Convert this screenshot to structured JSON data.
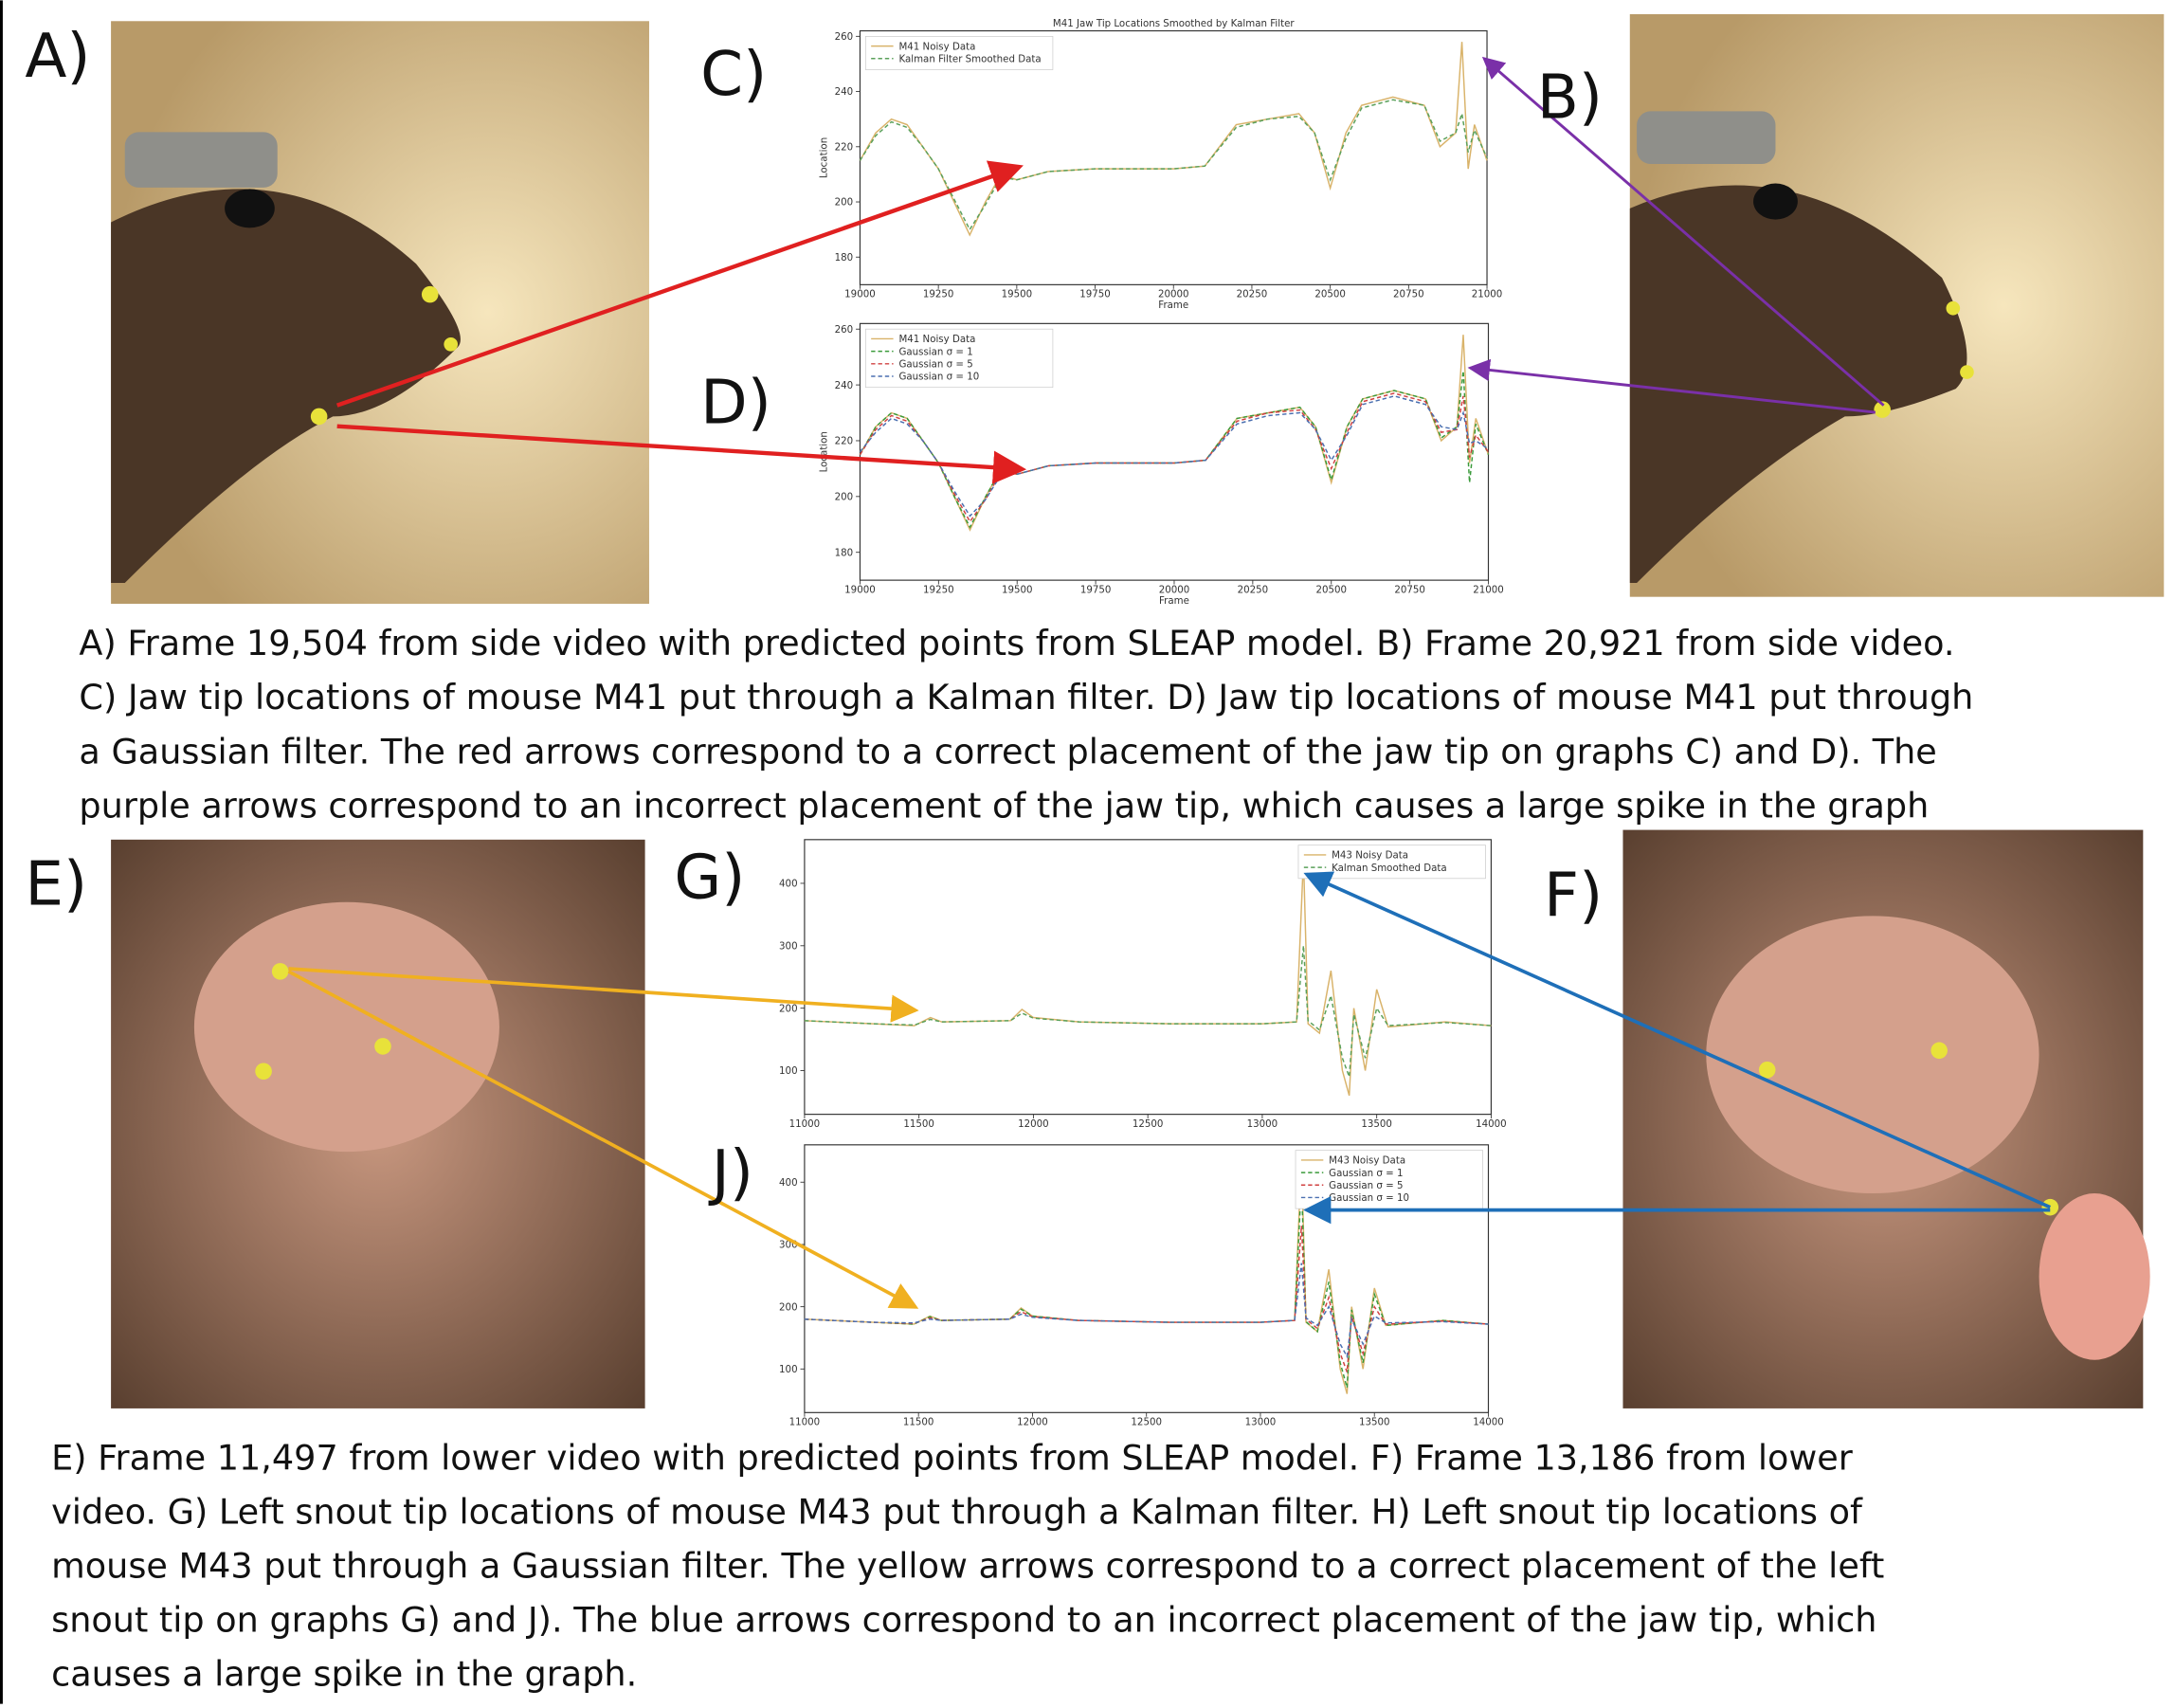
{
  "panel_labels": [
    "A)",
    "B)",
    "C)",
    "D)",
    "E)",
    "F)",
    "G)",
    "J)"
  ],
  "captions": [
    [
      "A) Frame 19,504 from side video with predicted points from SLEAP model. B) Frame 20,921 from side video.",
      "C) Jaw tip locations of mouse M41 put through a Kalman filter. D) Jaw tip locations of mouse M41 put through",
      "a Gaussian filter. The red arrows correspond to a correct placement of the jaw tip on graphs C) and D). The",
      "purple arrows correspond to an incorrect placement of the jaw tip, which causes a large spike in the graph"
    ],
    [
      "E) Frame 11,497 from lower video with predicted points from SLEAP model. F) Frame 13,186 from lower",
      "video. G) Left snout tip locations of mouse M43 put through a Kalman filter. H) Left snout tip locations of",
      "mouse M43 put through a Gaussian filter. The yellow arrows correspond to a correct placement of the left",
      "snout tip on graphs G) and J). The blue arrows correspond to an incorrect placement of the jaw tip, which",
      "causes a large spike in the graph."
    ]
  ],
  "chart_data": [
    {
      "type": "line",
      "title": "M41 Jaw Tip Locations Smoothed by Kalman Filter",
      "xlabel": "Frame",
      "ylabel": "Location",
      "legend": "upper left",
      "x": [
        19000,
        19050,
        19100,
        19150,
        19200,
        19250,
        19300,
        19350,
        19400,
        19450,
        19500,
        19600,
        19750,
        19900,
        20000,
        20100,
        20200,
        20300,
        20400,
        20450,
        20500,
        20550,
        20600,
        20700,
        20800,
        20850,
        20900,
        20920,
        20940,
        20960,
        21000
      ],
      "series": [
        {
          "name": "M41 Noisy Data",
          "color": "#d9b36a",
          "linestyle": "solid",
          "values": [
            215,
            225,
            230,
            228,
            220,
            212,
            200,
            188,
            200,
            210,
            208,
            211,
            212,
            212,
            212,
            213,
            228,
            230,
            232,
            225,
            205,
            225,
            235,
            238,
            235,
            220,
            225,
            258,
            212,
            228,
            215
          ]
        },
        {
          "name": "Kalman Filter Smoothed Data",
          "color": "#5aa05a",
          "linestyle": "dashed",
          "values": [
            215,
            224,
            229,
            227,
            220,
            212,
            201,
            190,
            199,
            209,
            208,
            211,
            212,
            212,
            212,
            213,
            227,
            230,
            231,
            225,
            208,
            223,
            234,
            237,
            235,
            222,
            225,
            232,
            218,
            226,
            216
          ]
        }
      ],
      "xlim": [
        19000,
        21000
      ],
      "ylim": [
        170,
        262
      ],
      "xticks": [
        19000,
        19250,
        19500,
        19750,
        20000,
        20250,
        20500,
        20750,
        21000
      ],
      "yticks": [
        180,
        200,
        220,
        240,
        260
      ]
    },
    {
      "type": "line",
      "xlabel": "Frame",
      "ylabel": "Location",
      "legend": "upper left",
      "x": [
        19000,
        19050,
        19100,
        19150,
        19200,
        19250,
        19300,
        19350,
        19400,
        19450,
        19500,
        19600,
        19750,
        19900,
        20000,
        20100,
        20200,
        20300,
        20400,
        20450,
        20500,
        20550,
        20600,
        20700,
        20800,
        20850,
        20900,
        20920,
        20940,
        20960,
        21000
      ],
      "series": [
        {
          "name": "M41 Noisy Data",
          "color": "#d9b36a",
          "linestyle": "solid",
          "values": [
            215,
            225,
            230,
            228,
            220,
            212,
            200,
            188,
            200,
            210,
            208,
            211,
            212,
            212,
            212,
            213,
            228,
            230,
            232,
            225,
            205,
            225,
            235,
            238,
            235,
            220,
            225,
            258,
            212,
            228,
            215
          ]
        },
        {
          "name": "Gaussian σ = 1",
          "color": "#3a9a3a",
          "linestyle": "dashed",
          "values": [
            215,
            225,
            230,
            228,
            220,
            212,
            200,
            189,
            200,
            210,
            208,
            211,
            212,
            212,
            212,
            213,
            228,
            230,
            232,
            225,
            206,
            225,
            235,
            238,
            235,
            221,
            225,
            245,
            205,
            226,
            215
          ]
        },
        {
          "name": "Gaussian σ = 5",
          "color": "#d04040",
          "linestyle": "dashed",
          "values": [
            215,
            224,
            229,
            227,
            220,
            212,
            201,
            191,
            199,
            209,
            208,
            211,
            212,
            212,
            212,
            213,
            227,
            230,
            231,
            224,
            210,
            223,
            234,
            237,
            234,
            223,
            224,
            236,
            214,
            222,
            216
          ]
        },
        {
          "name": "Gaussian σ = 10",
          "color": "#4a6fb0",
          "linestyle": "dashed",
          "values": [
            216,
            223,
            228,
            226,
            220,
            212,
            202,
            193,
            199,
            208,
            208,
            211,
            212,
            212,
            212,
            213,
            226,
            229,
            230,
            224,
            213,
            222,
            233,
            236,
            233,
            225,
            224,
            230,
            219,
            220,
            217
          ]
        }
      ],
      "xlim": [
        19000,
        21000
      ],
      "ylim": [
        170,
        262
      ],
      "xticks": [
        19000,
        19250,
        19500,
        19750,
        20000,
        20250,
        20500,
        20750,
        21000
      ],
      "yticks": [
        180,
        200,
        220,
        240,
        260
      ]
    },
    {
      "type": "line",
      "legend": "upper right",
      "x": [
        11000,
        11300,
        11480,
        11550,
        11600,
        11900,
        11950,
        12000,
        12200,
        12600,
        13000,
        13150,
        13180,
        13200,
        13250,
        13300,
        13350,
        13380,
        13400,
        13450,
        13500,
        13550,
        13800,
        14000
      ],
      "series": [
        {
          "name": "M43 Noisy Data",
          "color": "#d9b36a",
          "linestyle": "solid",
          "values": [
            180,
            175,
            172,
            185,
            178,
            180,
            198,
            185,
            178,
            175,
            175,
            178,
            440,
            175,
            160,
            260,
            100,
            60,
            200,
            100,
            230,
            170,
            178,
            172
          ]
        },
        {
          "name": "Kalman Smoothed Data",
          "color": "#5aa05a",
          "linestyle": "dashed",
          "values": [
            180,
            175,
            173,
            182,
            178,
            180,
            192,
            184,
            178,
            175,
            175,
            178,
            300,
            180,
            165,
            220,
            120,
            90,
            190,
            120,
            200,
            172,
            177,
            172
          ]
        }
      ],
      "xlim": [
        11000,
        14000
      ],
      "ylim": [
        30,
        470
      ],
      "xticks": [
        11000,
        11500,
        12000,
        12500,
        13000,
        13500,
        14000
      ],
      "yticks": [
        100,
        200,
        300,
        400
      ]
    },
    {
      "type": "line",
      "legend": "upper right",
      "x": [
        11000,
        11300,
        11480,
        11550,
        11600,
        11900,
        11950,
        12000,
        12200,
        12600,
        13000,
        13150,
        13180,
        13200,
        13250,
        13300,
        13350,
        13380,
        13400,
        13450,
        13500,
        13550,
        13800,
        14000
      ],
      "series": [
        {
          "name": "M43 Noisy Data",
          "color": "#d9b36a",
          "linestyle": "solid",
          "values": [
            180,
            175,
            172,
            185,
            178,
            180,
            198,
            185,
            178,
            175,
            175,
            178,
            440,
            175,
            160,
            260,
            100,
            60,
            200,
            100,
            230,
            170,
            178,
            172
          ]
        },
        {
          "name": "Gaussian σ = 1",
          "color": "#3a9a3a",
          "linestyle": "dashed",
          "values": [
            180,
            175,
            172,
            184,
            178,
            180,
            196,
            185,
            178,
            175,
            175,
            178,
            400,
            176,
            160,
            240,
            110,
            70,
            195,
            110,
            220,
            170,
            178,
            172
          ]
        },
        {
          "name": "Gaussian σ = 5",
          "color": "#d04040",
          "linestyle": "dashed",
          "values": [
            180,
            175,
            173,
            182,
            178,
            180,
            192,
            184,
            178,
            175,
            175,
            178,
            330,
            180,
            165,
            215,
            125,
            95,
            185,
            125,
            200,
            172,
            177,
            172
          ]
        },
        {
          "name": "Gaussian σ = 10",
          "color": "#4a6fb0",
          "linestyle": "dashed",
          "values": [
            180,
            175,
            174,
            180,
            178,
            180,
            188,
            183,
            178,
            175,
            175,
            178,
            270,
            182,
            170,
            200,
            140,
            120,
            180,
            140,
            185,
            174,
            176,
            172
          ]
        }
      ],
      "xlim": [
        11000,
        14000
      ],
      "ylim": [
        30,
        460
      ],
      "xticks": [
        11000,
        11500,
        12000,
        12500,
        13000,
        13500,
        14000
      ],
      "yticks": [
        100,
        200,
        300,
        400
      ]
    }
  ]
}
